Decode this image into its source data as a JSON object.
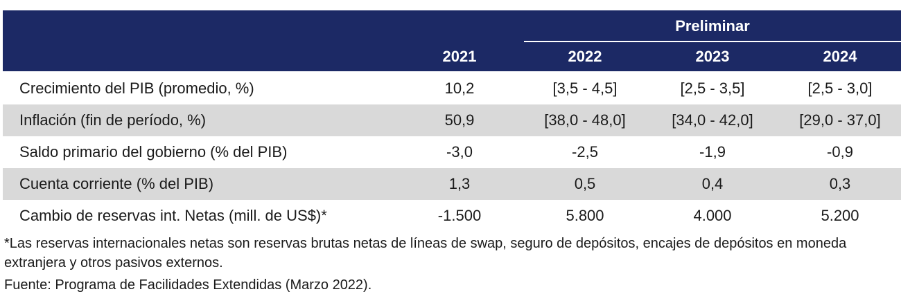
{
  "header": {
    "group_label": "Preliminar",
    "years": [
      "2021",
      "2022",
      "2023",
      "2024"
    ]
  },
  "rows": [
    {
      "label": "Crecimiento del PIB (promedio, %)",
      "values": [
        "10,2",
        "[3,5 - 4,5]",
        "[2,5 - 3,5]",
        "[2,5 - 3,0]"
      ]
    },
    {
      "label": "Inflación (fin de período, %)",
      "values": [
        "50,9",
        "[38,0 - 48,0]",
        "[34,0 - 42,0]",
        "[29,0 - 37,0]"
      ]
    },
    {
      "label": "Saldo primario del gobierno (% del PIB)",
      "values": [
        "-3,0",
        "-2,5",
        "-1,9",
        "-0,9"
      ]
    },
    {
      "label": "Cuenta corriente (% del PIB)",
      "values": [
        "1,3",
        "0,5",
        "0,4",
        "0,3"
      ]
    },
    {
      "label": "Cambio de reservas int. Netas (mill. de US$)*",
      "values": [
        "-1.500",
        "5.800",
        "4.000",
        "5.200"
      ]
    }
  ],
  "footnote": "*Las reservas internacionales netas son reservas brutas netas de líneas de swap, seguro de depósitos, encajes de depósitos en moneda extranjera y otros pasivos externos.",
  "source": "Fuente: Programa de Facilidades Extendidas (Marzo 2022).",
  "colors": {
    "header_bg": "#1c2965",
    "shaded_row": "#d9d9d9",
    "header_text": "#ffffff"
  }
}
